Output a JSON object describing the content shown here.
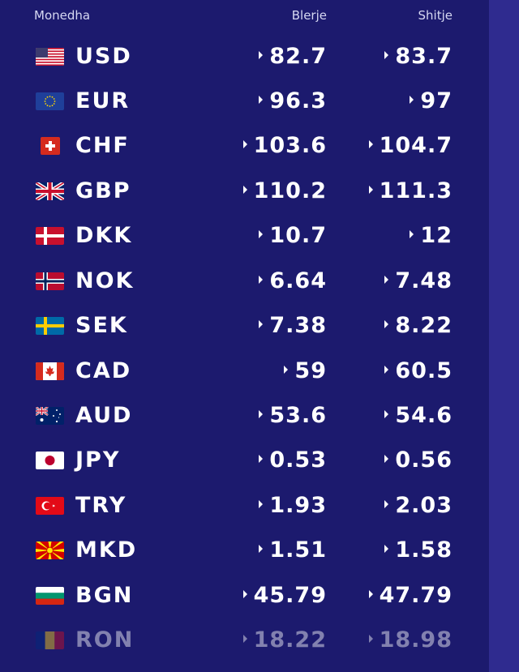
{
  "header": {
    "currency": "Monedha",
    "buy": "Blerje",
    "sell": "Shitje"
  },
  "rates": [
    {
      "code": "USD",
      "flag": "us-flag-icon",
      "buy": "82.7",
      "sell": "83.7"
    },
    {
      "code": "EUR",
      "flag": "eu-flag-icon",
      "buy": "96.3",
      "sell": "97"
    },
    {
      "code": "CHF",
      "flag": "ch-flag-icon",
      "buy": "103.6",
      "sell": "104.7"
    },
    {
      "code": "GBP",
      "flag": "gb-flag-icon",
      "buy": "110.2",
      "sell": "111.3"
    },
    {
      "code": "DKK",
      "flag": "dk-flag-icon",
      "buy": "10.7",
      "sell": "12"
    },
    {
      "code": "NOK",
      "flag": "no-flag-icon",
      "buy": "6.64",
      "sell": "7.48"
    },
    {
      "code": "SEK",
      "flag": "se-flag-icon",
      "buy": "7.38",
      "sell": "8.22"
    },
    {
      "code": "CAD",
      "flag": "ca-flag-icon",
      "buy": "59",
      "sell": "60.5"
    },
    {
      "code": "AUD",
      "flag": "au-flag-icon",
      "buy": "53.6",
      "sell": "54.6"
    },
    {
      "code": "JPY",
      "flag": "jp-flag-icon",
      "buy": "0.53",
      "sell": "0.56"
    },
    {
      "code": "TRY",
      "flag": "tr-flag-icon",
      "buy": "1.93",
      "sell": "2.03"
    },
    {
      "code": "MKD",
      "flag": "mk-flag-icon",
      "buy": "1.51",
      "sell": "1.58"
    },
    {
      "code": "BGN",
      "flag": "bg-flag-icon",
      "buy": "45.79",
      "sell": "47.79"
    },
    {
      "code": "RON",
      "flag": "ro-flag-icon",
      "buy": "18.22",
      "sell": "18.98"
    }
  ],
  "colors": {
    "background": "#1c1a6e",
    "strip": "#2f2b8f",
    "text": "#ffffff"
  }
}
